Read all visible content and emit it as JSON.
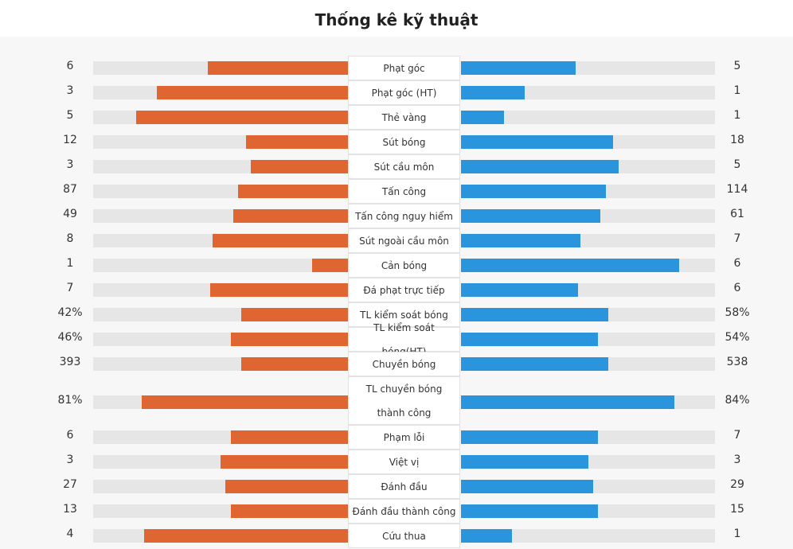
{
  "title": "Thống kê kỹ thuật",
  "colors": {
    "home": "#e06631",
    "away": "#2a94dc",
    "track": "#e6e6e6"
  },
  "stats": [
    {
      "label": "Phạt góc",
      "home": "6",
      "away": "5",
      "home_fill": 0.55,
      "away_fill": 0.45
    },
    {
      "label": "Phạt góc (HT)",
      "home": "3",
      "away": "1",
      "home_fill": 0.75,
      "away_fill": 0.25
    },
    {
      "label": "Thẻ vàng",
      "home": "5",
      "away": "1",
      "home_fill": 0.83,
      "away_fill": 0.17
    },
    {
      "label": "Sút bóng",
      "home": "12",
      "away": "18",
      "home_fill": 0.4,
      "away_fill": 0.6
    },
    {
      "label": "Sút cầu môn",
      "home": "3",
      "away": "5",
      "home_fill": 0.38,
      "away_fill": 0.62
    },
    {
      "label": "Tấn công",
      "home": "87",
      "away": "114",
      "home_fill": 0.43,
      "away_fill": 0.57
    },
    {
      "label": "Tấn công nguy hiểm",
      "home": "49",
      "away": "61",
      "home_fill": 0.45,
      "away_fill": 0.55
    },
    {
      "label": "Sút ngoài cầu môn",
      "home": "8",
      "away": "7",
      "home_fill": 0.53,
      "away_fill": 0.47
    },
    {
      "label": "Cản bóng",
      "home": "1",
      "away": "6",
      "home_fill": 0.14,
      "away_fill": 0.86
    },
    {
      "label": "Đá phạt trực tiếp",
      "home": "7",
      "away": "6",
      "home_fill": 0.54,
      "away_fill": 0.46
    },
    {
      "label": "TL kiểm soát bóng",
      "home": "42%",
      "away": "58%",
      "home_fill": 0.42,
      "away_fill": 0.58
    },
    {
      "label": "TL kiểm soát bóng(HT)",
      "home": "46%",
      "away": "54%",
      "home_fill": 0.46,
      "away_fill": 0.54
    },
    {
      "label": "Chuyền bóng",
      "home": "393",
      "away": "538",
      "home_fill": 0.42,
      "away_fill": 0.58
    },
    {
      "label": "TL chuyền bóng thành công",
      "home": "81%",
      "away": "84%",
      "home_fill": 0.81,
      "away_fill": 0.84
    },
    {
      "label": "Phạm lỗi",
      "home": "6",
      "away": "7",
      "home_fill": 0.46,
      "away_fill": 0.54
    },
    {
      "label": "Việt vị",
      "home": "3",
      "away": "3",
      "home_fill": 0.5,
      "away_fill": 0.5
    },
    {
      "label": "Đánh đầu",
      "home": "27",
      "away": "29",
      "home_fill": 0.48,
      "away_fill": 0.52
    },
    {
      "label": "Đánh đầu thành công",
      "home": "13",
      "away": "15",
      "home_fill": 0.46,
      "away_fill": 0.54
    },
    {
      "label": "Cứu thua",
      "home": "4",
      "away": "1",
      "home_fill": 0.8,
      "away_fill": 0.2
    }
  ]
}
